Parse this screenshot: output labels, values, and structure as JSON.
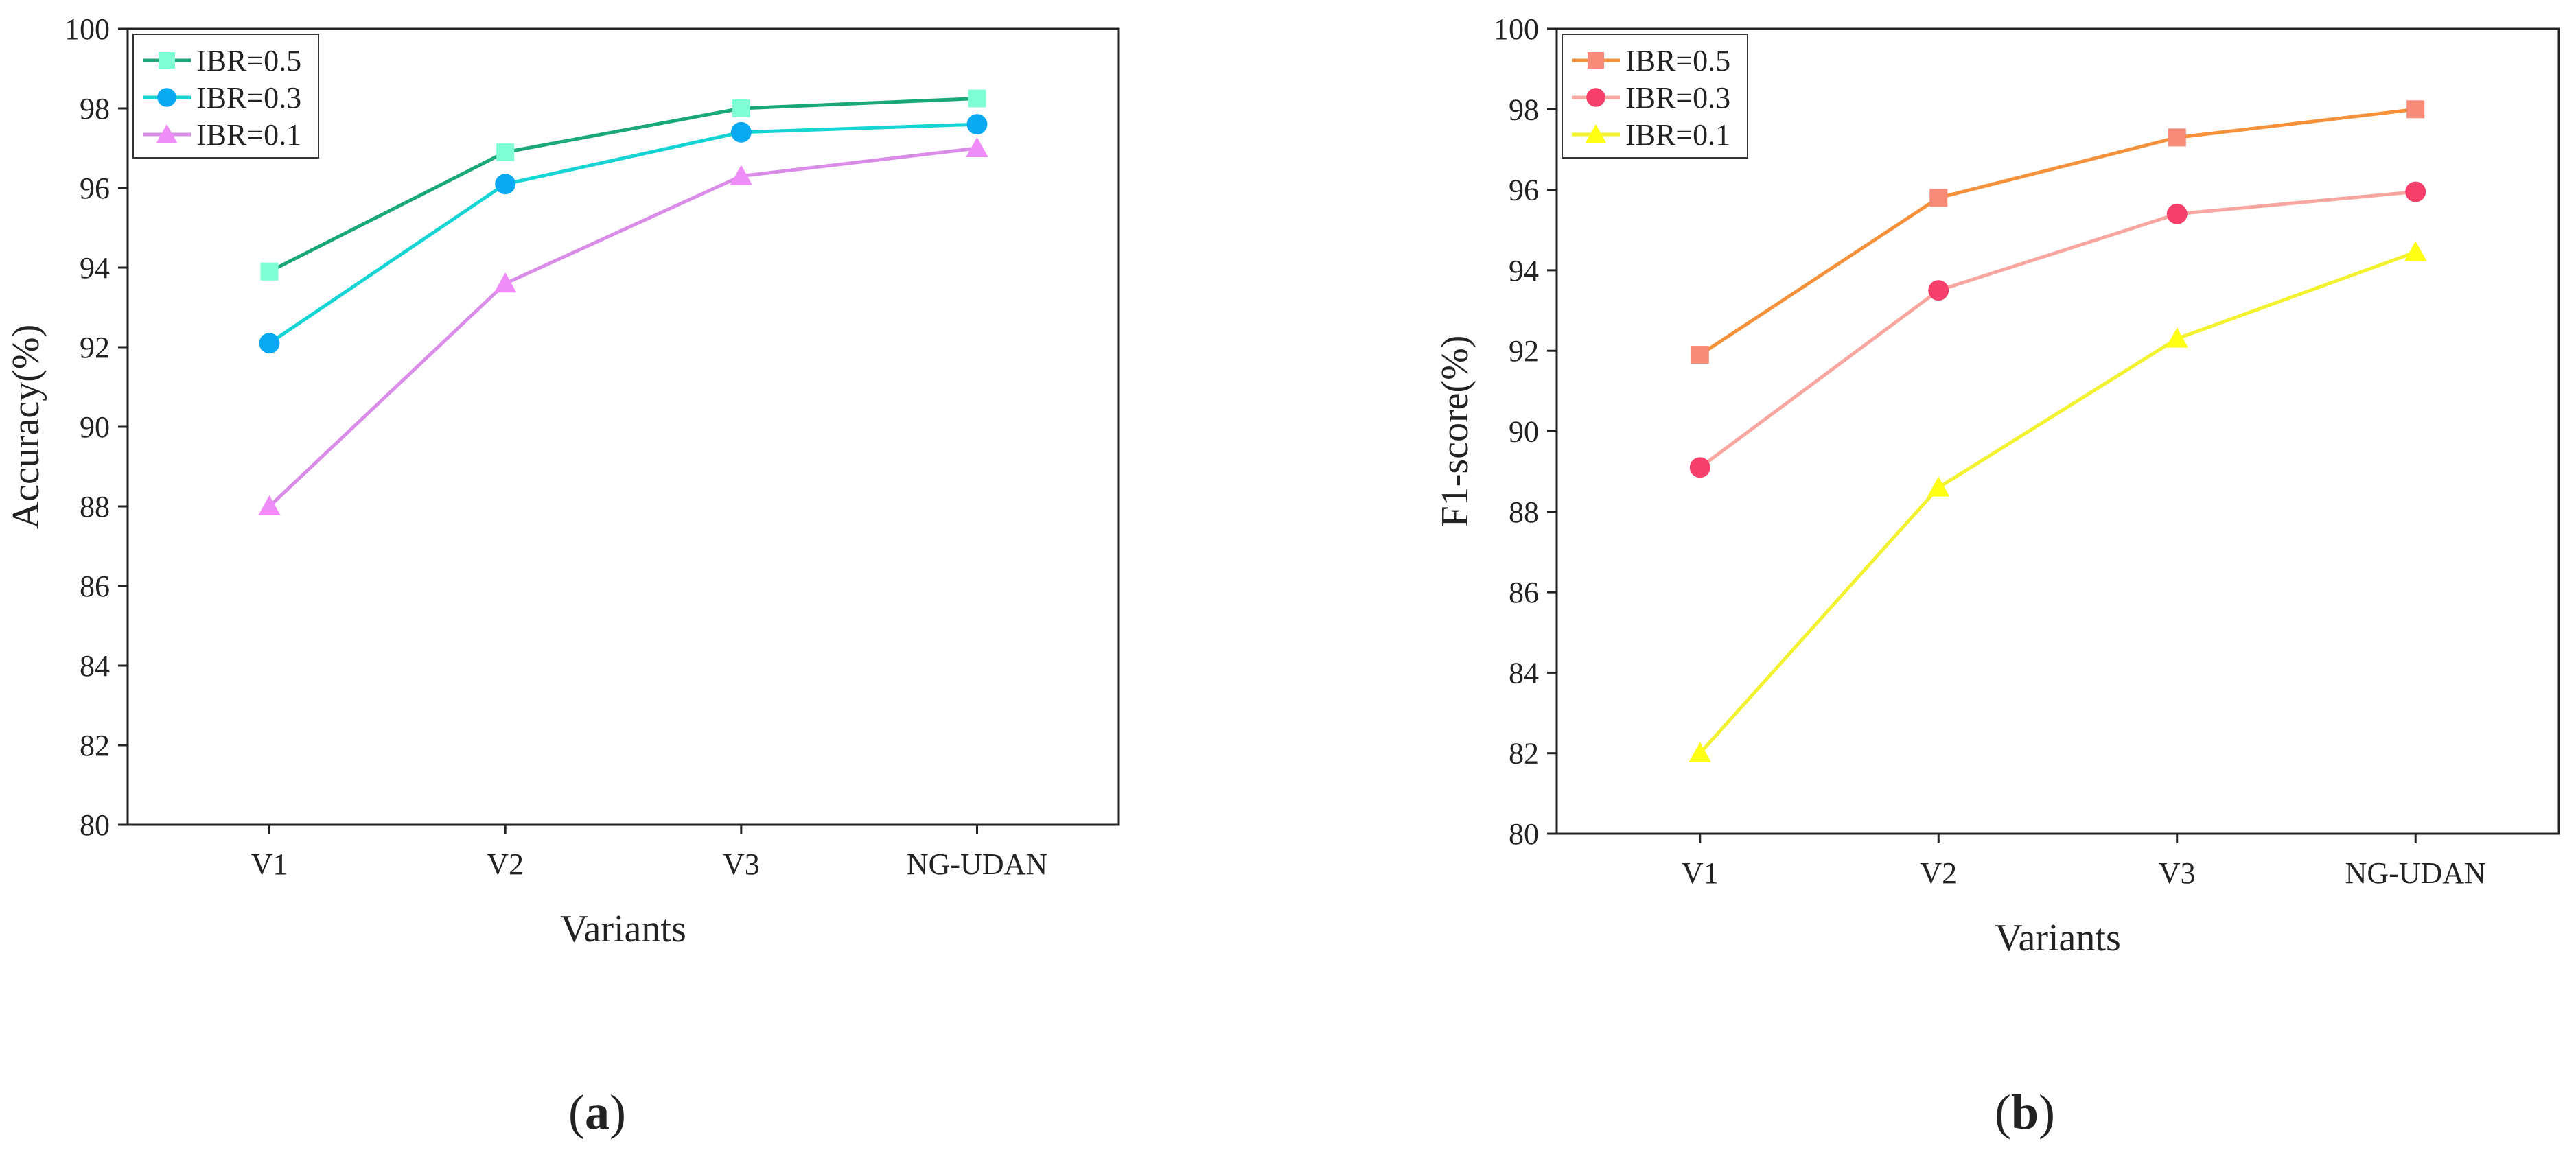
{
  "chart_data": [
    {
      "type": "line",
      "panel_label": "a",
      "categories": [
        "V1",
        "V2",
        "V3",
        "NG-UDAN"
      ],
      "xlabel": "Variants",
      "ylabel": "Accuracy(%)",
      "ylim": [
        80,
        100
      ],
      "yticks": [
        "80",
        "82",
        "84",
        "86",
        "88",
        "90",
        "92",
        "94",
        "96",
        "98",
        "100"
      ],
      "legend_position": "top-left",
      "grid": false,
      "series": [
        {
          "name": "IBR=0.5",
          "values": [
            93.9,
            96.9,
            98.0,
            98.25
          ],
          "line_color": "#1aa878",
          "marker_color": "#7fffd4",
          "marker": "square"
        },
        {
          "name": "IBR=0.3",
          "values": [
            92.1,
            96.1,
            97.4,
            97.6
          ],
          "line_color": "#16d4d4",
          "marker_color": "#0aa8f0",
          "marker": "circle"
        },
        {
          "name": "IBR=0.1",
          "values": [
            88.0,
            93.6,
            96.3,
            97.0
          ],
          "line_color": "#d98ce8",
          "marker_color": "#f08cf8",
          "marker": "triangle"
        }
      ]
    },
    {
      "type": "line",
      "panel_label": "b",
      "categories": [
        "V1",
        "V2",
        "V3",
        "NG-UDAN"
      ],
      "xlabel": "Variants",
      "ylabel": "F1-score(%)",
      "ylim": [
        80,
        100
      ],
      "yticks": [
        "80",
        "82",
        "84",
        "86",
        "88",
        "90",
        "92",
        "94",
        "96",
        "98",
        "100"
      ],
      "legend_position": "top-left",
      "grid": false,
      "series": [
        {
          "name": "IBR=0.5",
          "values": [
            91.9,
            95.8,
            97.3,
            98.0
          ],
          "line_color": "#f5913a",
          "marker_color": "#f88a78",
          "marker": "square"
        },
        {
          "name": "IBR=0.3",
          "values": [
            89.1,
            93.5,
            95.4,
            95.95
          ],
          "line_color": "#f9a5a0",
          "marker_color": "#f73f6b",
          "marker": "circle"
        },
        {
          "name": "IBR=0.1",
          "values": [
            82.0,
            88.6,
            92.3,
            94.45
          ],
          "line_color": "#f2f230",
          "marker_color": "#ffff14",
          "marker": "triangle"
        }
      ]
    }
  ]
}
